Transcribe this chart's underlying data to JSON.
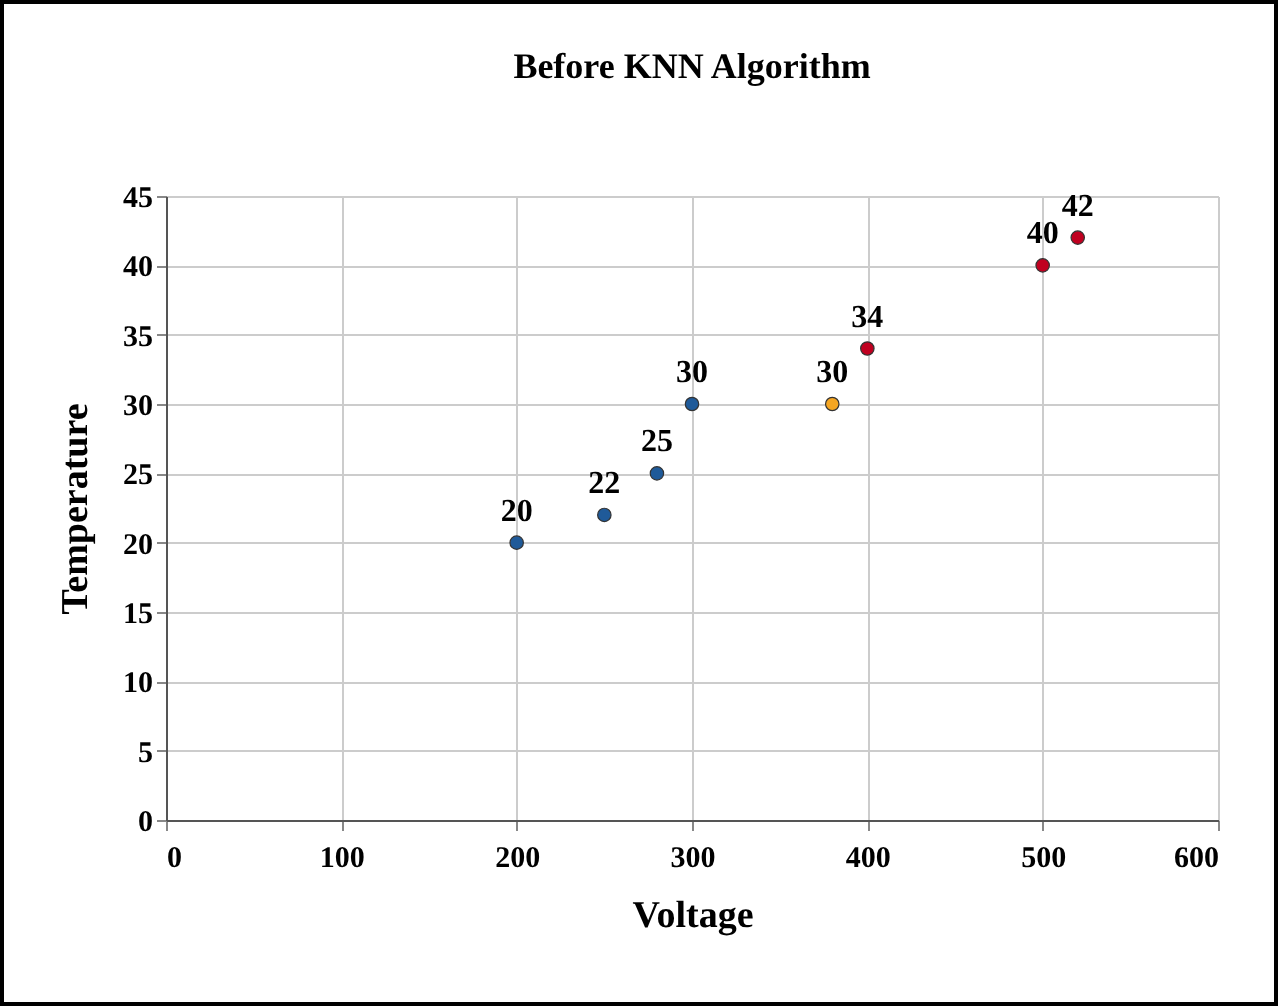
{
  "chart_data": {
    "type": "scatter",
    "title": "Before KNN Algorithm",
    "xlabel": "Voltage",
    "ylabel": "Temperature",
    "x": [
      200,
      250,
      280,
      300,
      380,
      400,
      500,
      520
    ],
    "values": [
      20,
      22,
      25,
      30,
      30,
      34,
      40,
      42
    ],
    "colors": [
      "#1f5a99",
      "#1f5a99",
      "#1f5a99",
      "#1f5a99",
      "#f5a623",
      "#c00020",
      "#c00020",
      "#c00020"
    ],
    "xlim": [
      0,
      600
    ],
    "xticks": [
      0,
      100,
      200,
      300,
      400,
      500,
      600
    ],
    "ylim": [
      0,
      45
    ],
    "yticks": [
      0,
      5,
      10,
      15,
      20,
      25,
      30,
      35,
      40,
      45
    ],
    "grid": true,
    "marker": "circle",
    "data_labels": true
  }
}
